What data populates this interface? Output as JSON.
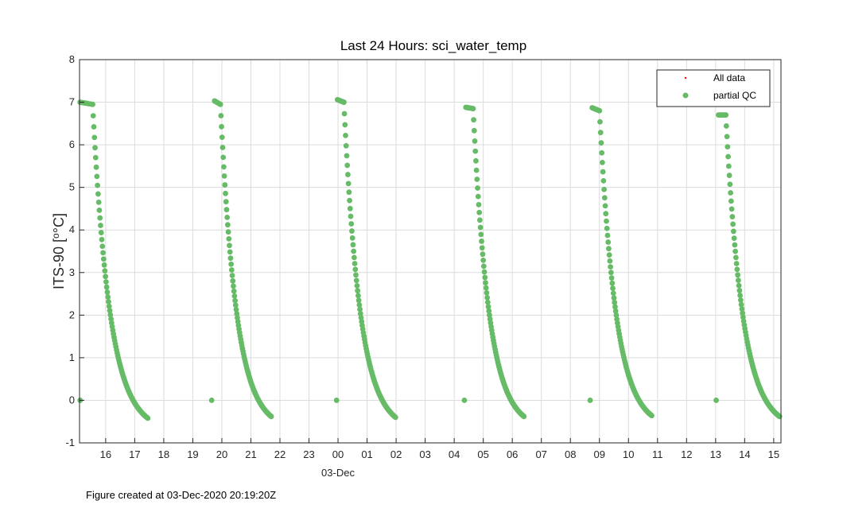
{
  "chart_data": {
    "type": "scatter",
    "title": "Last 24 Hours: sci_water_temp",
    "ylabel": "ITS-90 [",
    "ylabel_unit": "°C]",
    "xlabel": "",
    "x_date_label": "03-Dec",
    "x_tick_labels": [
      "16",
      "17",
      "18",
      "19",
      "20",
      "21",
      "22",
      "23",
      "00",
      "01",
      "02",
      "03",
      "04",
      "05",
      "06",
      "07",
      "08",
      "09",
      "10",
      "11",
      "12",
      "13",
      "14",
      "15"
    ],
    "x_tick_hours": [
      16,
      17,
      18,
      19,
      20,
      21,
      22,
      23,
      24,
      25,
      26,
      27,
      28,
      29,
      30,
      31,
      32,
      33,
      34,
      35,
      36,
      37,
      38,
      39
    ],
    "xlim_hours": [
      15.1,
      39.25
    ],
    "y_ticks": [
      -1,
      0,
      1,
      2,
      3,
      4,
      5,
      6,
      7,
      8
    ],
    "ylim": [
      -1,
      8
    ],
    "grid": true,
    "legend": {
      "placement": "top-right",
      "entries": [
        {
          "label": "All data",
          "marker": "dot",
          "color": "#ff0000"
        },
        {
          "label": "partial QC",
          "marker": "circle",
          "color": "#66bb66"
        }
      ]
    },
    "profiles_description_note": "",
    "series": [
      {
        "name": "partial QC",
        "color": "#66bb66",
        "profiles": [
          {
            "surface_start": 15.12,
            "surface_end": 15.55,
            "surface_temp": 7.0,
            "top_temp": 6.95,
            "descend_start": 15.55,
            "descend_end": 17.45,
            "bottom_temp": -0.42,
            "pre_dot": 15.12,
            "pre_temp": 0.0
          },
          {
            "surface_start": 19.75,
            "surface_end": 19.95,
            "surface_temp": 7.03,
            "top_temp": 6.95,
            "descend_start": 19.95,
            "descend_end": 21.7,
            "bottom_temp": -0.38,
            "pre_dot": 19.65,
            "pre_temp": 0.0
          },
          {
            "surface_start": 23.98,
            "surface_end": 24.2,
            "surface_temp": 7.06,
            "top_temp": 7.0,
            "descend_start": 24.2,
            "descend_end": 25.98,
            "bottom_temp": -0.4,
            "pre_dot": 23.95,
            "pre_temp": 0.0
          },
          {
            "surface_start": 28.4,
            "surface_end": 28.65,
            "surface_temp": 6.88,
            "top_temp": 6.85,
            "descend_start": 28.65,
            "descend_end": 30.4,
            "bottom_temp": -0.38,
            "pre_dot": 28.35,
            "pre_temp": 0.0
          },
          {
            "surface_start": 32.75,
            "surface_end": 33.0,
            "surface_temp": 6.87,
            "top_temp": 6.8,
            "descend_start": 33.0,
            "descend_end": 34.8,
            "bottom_temp": -0.36,
            "pre_dot": 32.68,
            "pre_temp": 0.0
          },
          {
            "surface_start": 37.1,
            "surface_end": 37.35,
            "surface_temp": 6.7,
            "top_temp": 6.7,
            "descend_start": 37.35,
            "descend_end": 39.2,
            "bottom_temp": -0.38,
            "pre_dot": 37.02,
            "pre_temp": 0.0
          }
        ]
      }
    ]
  },
  "footer": {
    "text": "Figure created at 03-Dec-2020 20:19:20Z"
  }
}
